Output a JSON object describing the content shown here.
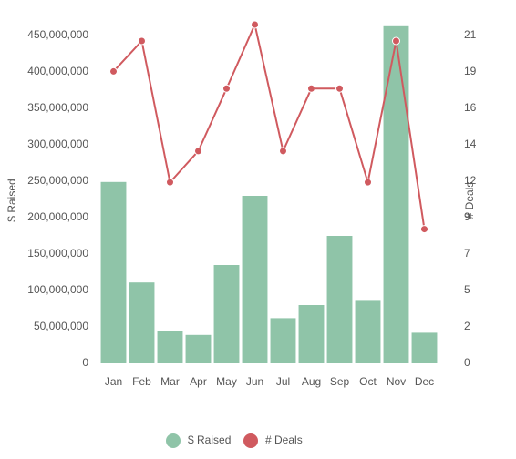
{
  "chart_data": {
    "type": "bar",
    "categories": [
      "Jan",
      "Feb",
      "Mar",
      "Apr",
      "May",
      "Jun",
      "Jul",
      "Aug",
      "Sep",
      "Oct",
      "Nov",
      "Dec"
    ],
    "series": [
      {
        "name": "$ Raised",
        "type": "bar",
        "color": "#8fc4a8",
        "values": [
          249000000,
          111000000,
          44000000,
          39000000,
          135000000,
          230000000,
          62000000,
          80000000,
          175000000,
          87000000,
          464000000,
          42000000
        ]
      },
      {
        "name": "# Deals",
        "type": "line",
        "axis": "y2",
        "color": "#d05a5f",
        "values": [
          18.7,
          20.65,
          11.6,
          13.6,
          17.6,
          21.7,
          13.6,
          17.6,
          17.6,
          11.6,
          20.65,
          8.6
        ]
      }
    ],
    "ylabel": "$ Raised",
    "y2label": "# Deals",
    "ylim": [
      0,
      480000000
    ],
    "yticks": [
      {
        "value": 0,
        "label": "0"
      },
      {
        "value": 50000000,
        "label": "50,000,000"
      },
      {
        "value": 100000000,
        "label": "100,000,000"
      },
      {
        "value": 150000000,
        "label": "150,000,000"
      },
      {
        "value": 200000000,
        "label": "200,000,000"
      },
      {
        "value": 250000000,
        "label": "250,000,000"
      },
      {
        "value": 300000000,
        "label": "300,000,000"
      },
      {
        "value": 350000000,
        "label": "350,000,000"
      },
      {
        "value": 400000000,
        "label": "400,000,000"
      },
      {
        "value": 450000000,
        "label": "450,000,000"
      }
    ],
    "y2lim": [
      0,
      22.4
    ],
    "y2ticks": [
      0,
      {
        "value": 2.33,
        "label": "2"
      },
      {
        "value": 4.67,
        "label": "5"
      },
      7,
      {
        "value": 9.33,
        "label": "9"
      },
      {
        "value": 11.67,
        "label": "12"
      },
      14,
      {
        "value": 16.33,
        "label": "16"
      },
      {
        "value": 18.67,
        "label": "19"
      },
      21
    ],
    "legend": "bottom"
  }
}
